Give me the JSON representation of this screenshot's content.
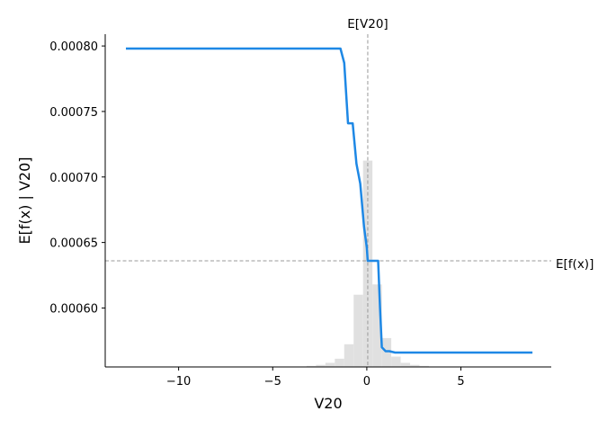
{
  "chart_data": {
    "type": "line",
    "title": "",
    "xlabel": "V20",
    "ylabel": "E[f(x) | V20]",
    "xlim": [
      -13.9,
      9.8
    ],
    "ylim": [
      0.000555,
      0.000809
    ],
    "x_ticks": [
      -10,
      -5,
      0,
      5
    ],
    "x_tick_labels": [
      "−10",
      "−5",
      "0",
      "5"
    ],
    "y_ticks": [
      0.0006,
      0.00065,
      0.0007,
      0.00075,
      0.0008
    ],
    "y_tick_labels": [
      "0.00060",
      "0.00065",
      "0.00070",
      "0.00075",
      "0.00080"
    ],
    "grid": false,
    "series": [
      {
        "color": "#1e88e5",
        "x": [
          -12.8,
          -1.4,
          -1.2,
          -1.0,
          -0.75,
          -0.55,
          -0.35,
          -0.15,
          0.0,
          0.05,
          0.1,
          0.2,
          0.3,
          0.45,
          0.6,
          0.7,
          0.8,
          1.0,
          1.2,
          1.5,
          2.0,
          3.0,
          5.0,
          8.8
        ],
        "y": [
          0.000798,
          0.000798,
          0.000787,
          0.000741,
          0.000741,
          0.00071,
          0.000695,
          0.000662,
          0.000646,
          0.000636,
          0.000636,
          0.000636,
          0.000636,
          0.000636,
          0.000636,
          0.0006,
          0.00057,
          0.000567,
          0.000567,
          0.000566,
          0.000566,
          0.000566,
          0.000566,
          0.000566
        ]
      }
    ],
    "reference_lines": [
      {
        "orientation": "vertical",
        "label": "E[V20]",
        "value": 0.05
      },
      {
        "orientation": "horizontal",
        "label": "E[f(x)]",
        "value": 0.000636
      }
    ],
    "histogram": {
      "color": "#e0e0e0",
      "bin_edges": [
        -3.2,
        -2.7,
        -2.2,
        -1.7,
        -1.2,
        -0.7,
        -0.2,
        0.3,
        0.8,
        1.3,
        1.8,
        2.3,
        2.8,
        3.3
      ],
      "heights": [
        0.005,
        0.01,
        0.02,
        0.04,
        0.11,
        0.35,
        1.0,
        0.4,
        0.14,
        0.05,
        0.02,
        0.01,
        0.005
      ]
    }
  }
}
